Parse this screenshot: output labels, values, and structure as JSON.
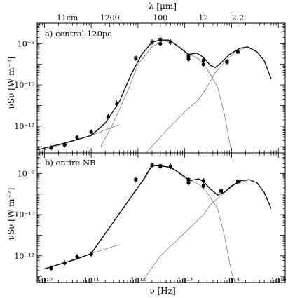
{
  "chart_data": {
    "type": "scatter",
    "x_axis": {
      "label": "ν [Hz]",
      "scale": "log",
      "range": [
        7000000000.0,
        1400000000000000.0
      ],
      "ticks": [
        {
          "value": 10000000000.0,
          "label": "10¹⁰"
        },
        {
          "value": 100000000000.0,
          "label": "10¹¹"
        },
        {
          "value": 1000000000000.0,
          "label": "10¹²"
        },
        {
          "value": 10000000000000.0,
          "label": "10¹³"
        },
        {
          "value": 100000000000000.0,
          "label": "10¹⁴"
        },
        {
          "value": 1000000000000000.0,
          "label": "10¹⁵"
        }
      ]
    },
    "top_axis": {
      "label": "λ [μm]",
      "ticks": [
        {
          "frequency": 2730000000.0,
          "label": "11cm"
        },
        {
          "frequency": 250000000000.0,
          "label": "1200"
        },
        {
          "frequency": 3000000000000.0,
          "label": "100"
        },
        {
          "frequency": 25000000000000.0,
          "label": "12"
        },
        {
          "frequency": 136000000000000.0,
          "label": "2.2"
        }
      ]
    },
    "y_axis": {
      "label": "νSν [W m⁻²]",
      "scale": "log",
      "range": [
        5e-14,
        1e-07
      ],
      "ticks": [
        {
          "value": 1e-08,
          "label": "10⁻⁸"
        },
        {
          "value": 1e-10,
          "label": "10⁻¹⁰"
        },
        {
          "value": 1e-12,
          "label": "10⁻¹²"
        }
      ]
    },
    "panels": [
      {
        "label": "a) central 120pc",
        "points": [
          {
            "x": 14000000000.0,
            "y": 9e-14,
            "marker": "circle"
          },
          {
            "x": 27000000000.0,
            "y": 1.2e-13,
            "marker": "circle"
          },
          {
            "x": 50000000000.0,
            "y": 2.8e-13,
            "marker": "circle"
          },
          {
            "x": 100000000000.0,
            "y": 5.2e-13,
            "marker": "circle"
          },
          {
            "x": 230000000000.0,
            "y": 3e-12,
            "marker": "triangle"
          },
          {
            "x": 350000000000.0,
            "y": 1.3e-11,
            "marker": "triangle"
          },
          {
            "x": 900000000000.0,
            "y": 2e-09,
            "marker": "square"
          },
          {
            "x": 2000000000000.0,
            "y": 1.2e-08,
            "marker": "square"
          },
          {
            "x": 3000000000000.0,
            "y": 1.6e-08,
            "marker": "square"
          },
          {
            "x": 3000000000000.0,
            "y": 1e-08,
            "marker": "circle"
          },
          {
            "x": 5000000000000.0,
            "y": 1.2e-08,
            "marker": "square"
          },
          {
            "x": 12000000000000.0,
            "y": 2.5e-09,
            "marker": "square"
          },
          {
            "x": 12000000000000.0,
            "y": 1.8e-09,
            "marker": "circle"
          },
          {
            "x": 25000000000000.0,
            "y": 1.5e-09,
            "marker": "square"
          },
          {
            "x": 25000000000000.0,
            "y": 1e-09,
            "marker": "circle"
          },
          {
            "x": 80000000000000.0,
            "y": 1.3e-09,
            "marker": "square"
          },
          {
            "x": 136000000000000.0,
            "y": 4e-09,
            "marker": "square"
          }
        ],
        "total_model": [
          [
            7000000000.0,
            7e-14
          ],
          [
            30000000000.0,
            1.6e-13
          ],
          [
            100000000000.0,
            3.5e-13
          ],
          [
            200000000000.0,
            1.4e-12
          ],
          [
            400000000000.0,
            1.5e-11
          ],
          [
            700000000000.0,
            3e-10
          ],
          [
            1200000000000.0,
            3e-09
          ],
          [
            2000000000000.0,
            1.2e-08
          ],
          [
            3000000000000.0,
            1.5e-08
          ],
          [
            4500000000000.0,
            1.5e-08
          ],
          [
            7000000000000.0,
            8e-09
          ],
          [
            12000000000000.0,
            3e-09
          ],
          [
            18000000000000.0,
            3.5e-09
          ],
          [
            25000000000000.0,
            2.2e-09
          ],
          [
            35000000000000.0,
            9e-10
          ],
          [
            45000000000000.0,
            7e-10
          ],
          [
            60000000000000.0,
            1.2e-09
          ],
          [
            90000000000000.0,
            3e-09
          ],
          [
            150000000000000.0,
            6e-09
          ],
          [
            220000000000000.0,
            7e-09
          ],
          [
            350000000000000.0,
            4e-09
          ],
          [
            500000000000000.0,
            1.5e-09
          ],
          [
            700000000000000.0,
            2e-10
          ]
        ],
        "components": [
          [
            [
              10000000000.0,
              7e-14
            ],
            [
              100000000000.0,
              3.5e-13
            ],
            [
              400000000000.0,
              1.2e-12
            ]
          ],
          [
            [
              160000000000.0,
              1e-13
            ],
            [
              300000000000.0,
              1.5e-12
            ],
            [
              600000000000.0,
              5e-11
            ],
            [
              1000000000000.0,
              1e-09
            ],
            [
              2000000000000.0,
              7e-09
            ],
            [
              3500000000000.0,
              1.4e-08
            ],
            [
              6000000000000.0,
              1e-08
            ],
            [
              10000000000000.0,
              4e-09
            ],
            [
              20000000000000.0,
              1.8e-09
            ],
            [
              30000000000000.0,
              6e-10
            ],
            [
              50000000000000.0,
              8e-11
            ],
            [
              70000000000000.0,
              4e-12
            ],
            [
              100000000000000.0,
              5e-14
            ]
          ],
          [
            [
              1500000000000.0,
              5e-14
            ],
            [
              4000000000000.0,
              6e-13
            ],
            [
              10000000000000.0,
              5e-12
            ],
            [
              20000000000000.0,
              2e-11
            ],
            [
              30000000000000.0,
              8e-11
            ],
            [
              45000000000000.0,
              4e-10
            ],
            [
              70000000000000.0,
              1.3e-09
            ],
            [
              120000000000000.0,
              4e-09
            ],
            [
              220000000000000.0,
              7e-09
            ],
            [
              350000000000000.0,
              4e-09
            ],
            [
              500000000000000.0,
              1.5e-09
            ],
            [
              700000000000000.0,
              2e-10
            ]
          ]
        ]
      },
      {
        "label": "b) entire NB",
        "points": [
          {
            "x": 14000000000.0,
            "y": 2.5e-13,
            "marker": "circle"
          },
          {
            "x": 27000000000.0,
            "y": 4.5e-13,
            "marker": "circle"
          },
          {
            "x": 50000000000.0,
            "y": 9e-13,
            "marker": "circle"
          },
          {
            "x": 100000000000.0,
            "y": 1.2e-12,
            "marker": "circle"
          },
          {
            "x": 900000000000.0,
            "y": 5e-09,
            "marker": "square"
          },
          {
            "x": 2000000000000.0,
            "y": 2.5e-08,
            "marker": "square"
          },
          {
            "x": 3000000000000.0,
            "y": 2.3e-08,
            "marker": "square"
          },
          {
            "x": 5000000000000.0,
            "y": 2.2e-08,
            "marker": "square"
          },
          {
            "x": 12000000000000.0,
            "y": 5e-09,
            "marker": "square"
          },
          {
            "x": 12000000000000.0,
            "y": 3.5e-09,
            "marker": "circle"
          },
          {
            "x": 25000000000000.0,
            "y": 4.5e-09,
            "marker": "circle"
          },
          {
            "x": 25000000000000.0,
            "y": 2.5e-09,
            "marker": "square"
          },
          {
            "x": 60000000000000.0,
            "y": 1.4e-09,
            "marker": "square"
          },
          {
            "x": 136000000000000.0,
            "y": 4e-09,
            "marker": "square"
          }
        ],
        "total_model": [
          [
            10000000000.0,
            2.3e-13
          ],
          [
            50000000000.0,
            7e-13
          ],
          [
            100000000000.0,
            1.3e-12
          ],
          [
            1300000000000.0,
            5e-09
          ],
          [
            2000000000000.0,
            2.5e-08
          ],
          [
            3000000000000.0,
            2.3e-08
          ],
          [
            5000000000000.0,
            2e-08
          ],
          [
            8000000000000.0,
            1e-08
          ],
          [
            13000000000000.0,
            4.5e-09
          ],
          [
            20000000000000.0,
            5.5e-09
          ],
          [
            25000000000000.0,
            4e-09
          ],
          [
            35000000000000.0,
            1.8e-09
          ],
          [
            50000000000000.0,
            9e-10
          ],
          [
            70000000000000.0,
            1.2e-09
          ],
          [
            100000000000000.0,
            2.5e-09
          ],
          [
            160000000000000.0,
            4.5e-09
          ],
          [
            240000000000000.0,
            5e-09
          ],
          [
            350000000000000.0,
            3.5e-09
          ],
          [
            500000000000000.0,
            1.2e-09
          ],
          [
            700000000000000.0,
            2e-10
          ]
        ],
        "components": [
          [
            [
              10000000000.0,
              2.2e-13
            ],
            [
              100000000000.0,
              1.3e-12
            ],
            [
              400000000000.0,
              3.5e-12
            ]
          ],
          [
            [
              1300000000000.0,
              4e-09
            ],
            [
              2000000000000.0,
              2.4e-08
            ],
            [
              3500000000000.0,
              2.3e-08
            ],
            [
              6000000000000.0,
              1.5e-08
            ],
            [
              10000000000000.0,
              6e-09
            ],
            [
              20000000000000.0,
              3e-09
            ],
            [
              30000000000000.0,
              1.2e-09
            ],
            [
              50000000000000.0,
              2e-10
            ],
            [
              70000000000000.0,
              1e-11
            ],
            [
              100000000000000.0,
              1.5e-13
            ],
            [
              120000000000000.0,
              5e-14
            ]
          ],
          [
            [
              1200000000000.0,
              5e-14
            ],
            [
              3000000000000.0,
              1e-12
            ],
            [
              10000000000000.0,
              1.3e-11
            ],
            [
              25000000000000.0,
              1e-10
            ],
            [
              35000000000000.0,
              3e-10
            ],
            [
              50000000000000.0,
              6e-10
            ],
            [
              70000000000000.0,
              1.2e-09
            ],
            [
              120000000000000.0,
              3e-09
            ],
            [
              240000000000000.0,
              5e-09
            ],
            [
              350000000000000.0,
              3.5e-09
            ],
            [
              500000000000000.0,
              1.2e-09
            ],
            [
              700000000000000.0,
              2e-10
            ]
          ]
        ]
      }
    ]
  }
}
